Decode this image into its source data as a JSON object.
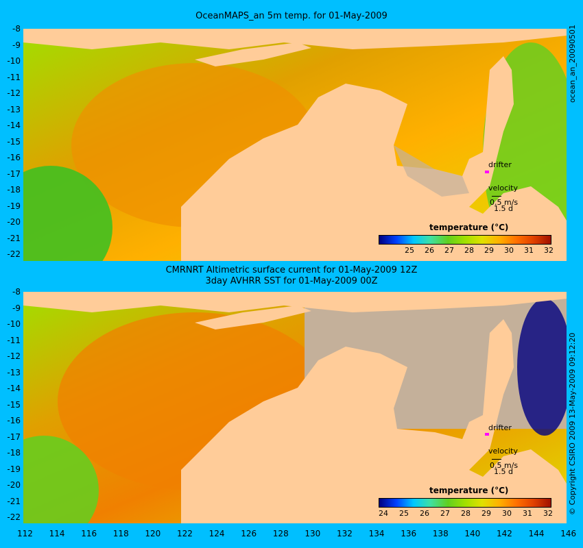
{
  "panel_top": {
    "title": "OceanMAPS_an 5m temp. for 01-May-2009",
    "side_id": "ocean_an_20090501",
    "legend_title": "temperature (°C)",
    "legend_ticks": [
      "25",
      "26",
      "27",
      "28",
      "29",
      "30",
      "31",
      "32"
    ],
    "drifter_label": "drifter",
    "velocity_label": "velocity",
    "velocity_scale": "0.5 m/s",
    "velocity_days": "1.5 d"
  },
  "panel_bottom": {
    "title_line1": "CMRNRT Altimetric surface current for 01-May-2009 12Z",
    "title_line2": "3day AVHRR SST for 01-May-2009 00Z",
    "side_copyright": "© Copyright CSIRO 2009  13-May-2009 09:12:20",
    "legend_title": "temperature (°C)",
    "legend_ticks": [
      "24",
      "25",
      "26",
      "27",
      "28",
      "29",
      "30",
      "31",
      "32"
    ],
    "drifter_label": "drifter",
    "velocity_label": "velocity",
    "velocity_scale": "0.5 m/s",
    "velocity_days": "1.5 d"
  },
  "lat_ticks": [
    "-8",
    "-9",
    "-10",
    "-11",
    "-12",
    "-13",
    "-14",
    "-15",
    "-16",
    "-17",
    "-18",
    "-19",
    "-20",
    "-21",
    "-22"
  ],
  "lon_ticks": [
    "112",
    "114",
    "116",
    "118",
    "120",
    "122",
    "124",
    "126",
    "128",
    "130",
    "132",
    "134",
    "136",
    "138",
    "140",
    "142",
    "144",
    "146"
  ],
  "colors": {
    "background": "#00bfff",
    "land": "#ffcc99",
    "shelf_gray": "#c4b09a",
    "colormap": [
      "#000080",
      "#0040ff",
      "#00c8ff",
      "#40e0a0",
      "#60d020",
      "#a0e000",
      "#e0e000",
      "#ffb000",
      "#ff7000",
      "#e04000",
      "#a01000"
    ]
  }
}
